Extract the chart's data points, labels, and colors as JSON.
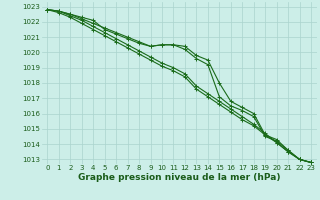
{
  "x": [
    0,
    1,
    2,
    3,
    4,
    5,
    6,
    7,
    8,
    9,
    10,
    11,
    12,
    13,
    14,
    15,
    16,
    17,
    18,
    19,
    20,
    21,
    22,
    23
  ],
  "series": [
    [
      1022.8,
      1022.7,
      1022.5,
      1022.3,
      1022.1,
      1021.5,
      1021.2,
      1020.9,
      1020.6,
      1020.4,
      1020.5,
      1020.5,
      1020.2,
      1019.6,
      1019.2,
      1017.1,
      1016.5,
      1016.2,
      1015.8,
      1014.5,
      1014.2,
      1013.6,
      1013.0,
      1012.8
    ],
    [
      1022.8,
      1022.7,
      1022.4,
      1022.1,
      1021.7,
      1021.3,
      1020.9,
      1020.5,
      1020.1,
      1019.7,
      1019.3,
      1019.0,
      1018.6,
      1017.8,
      1017.3,
      1016.8,
      1016.3,
      1015.8,
      1015.3,
      1014.7,
      1014.1,
      1013.5,
      1013.0,
      1012.8
    ],
    [
      1022.8,
      1022.6,
      1022.3,
      1021.9,
      1021.5,
      1021.1,
      1020.7,
      1020.3,
      1019.9,
      1019.5,
      1019.1,
      1018.8,
      1018.4,
      1017.6,
      1017.1,
      1016.6,
      1016.1,
      1015.6,
      1015.2,
      1014.6,
      1014.1,
      1013.5,
      1013.0,
      1012.8
    ],
    [
      1022.8,
      1022.7,
      1022.5,
      1022.2,
      1021.9,
      1021.6,
      1021.3,
      1021.0,
      1020.7,
      1020.4,
      1020.5,
      1020.5,
      1020.4,
      1019.8,
      1019.5,
      1018.0,
      1016.8,
      1016.4,
      1016.0,
      1014.6,
      1014.3,
      1013.6,
      1013.0,
      1012.8
    ]
  ],
  "line_colors": [
    "#1a6b1a",
    "#1a6b1a",
    "#1a6b1a",
    "#1a6b1a"
  ],
  "marker": "+",
  "marker_size": 3,
  "bg_color": "#cceee8",
  "grid_color": "#aad4ce",
  "text_color": "#1a5c1a",
  "xlabel": "Graphe pression niveau de la mer (hPa)",
  "xlim_min": -0.5,
  "xlim_max": 23.5,
  "ylim_min": 1012.7,
  "ylim_max": 1023.3,
  "yticks": [
    1013,
    1014,
    1015,
    1016,
    1017,
    1018,
    1019,
    1020,
    1021,
    1022,
    1023
  ],
  "xticks": [
    0,
    1,
    2,
    3,
    4,
    5,
    6,
    7,
    8,
    9,
    10,
    11,
    12,
    13,
    14,
    15,
    16,
    17,
    18,
    19,
    20,
    21,
    22,
    23
  ],
  "tick_fontsize": 5.0,
  "xlabel_fontsize": 6.5,
  "line_width": 0.8
}
